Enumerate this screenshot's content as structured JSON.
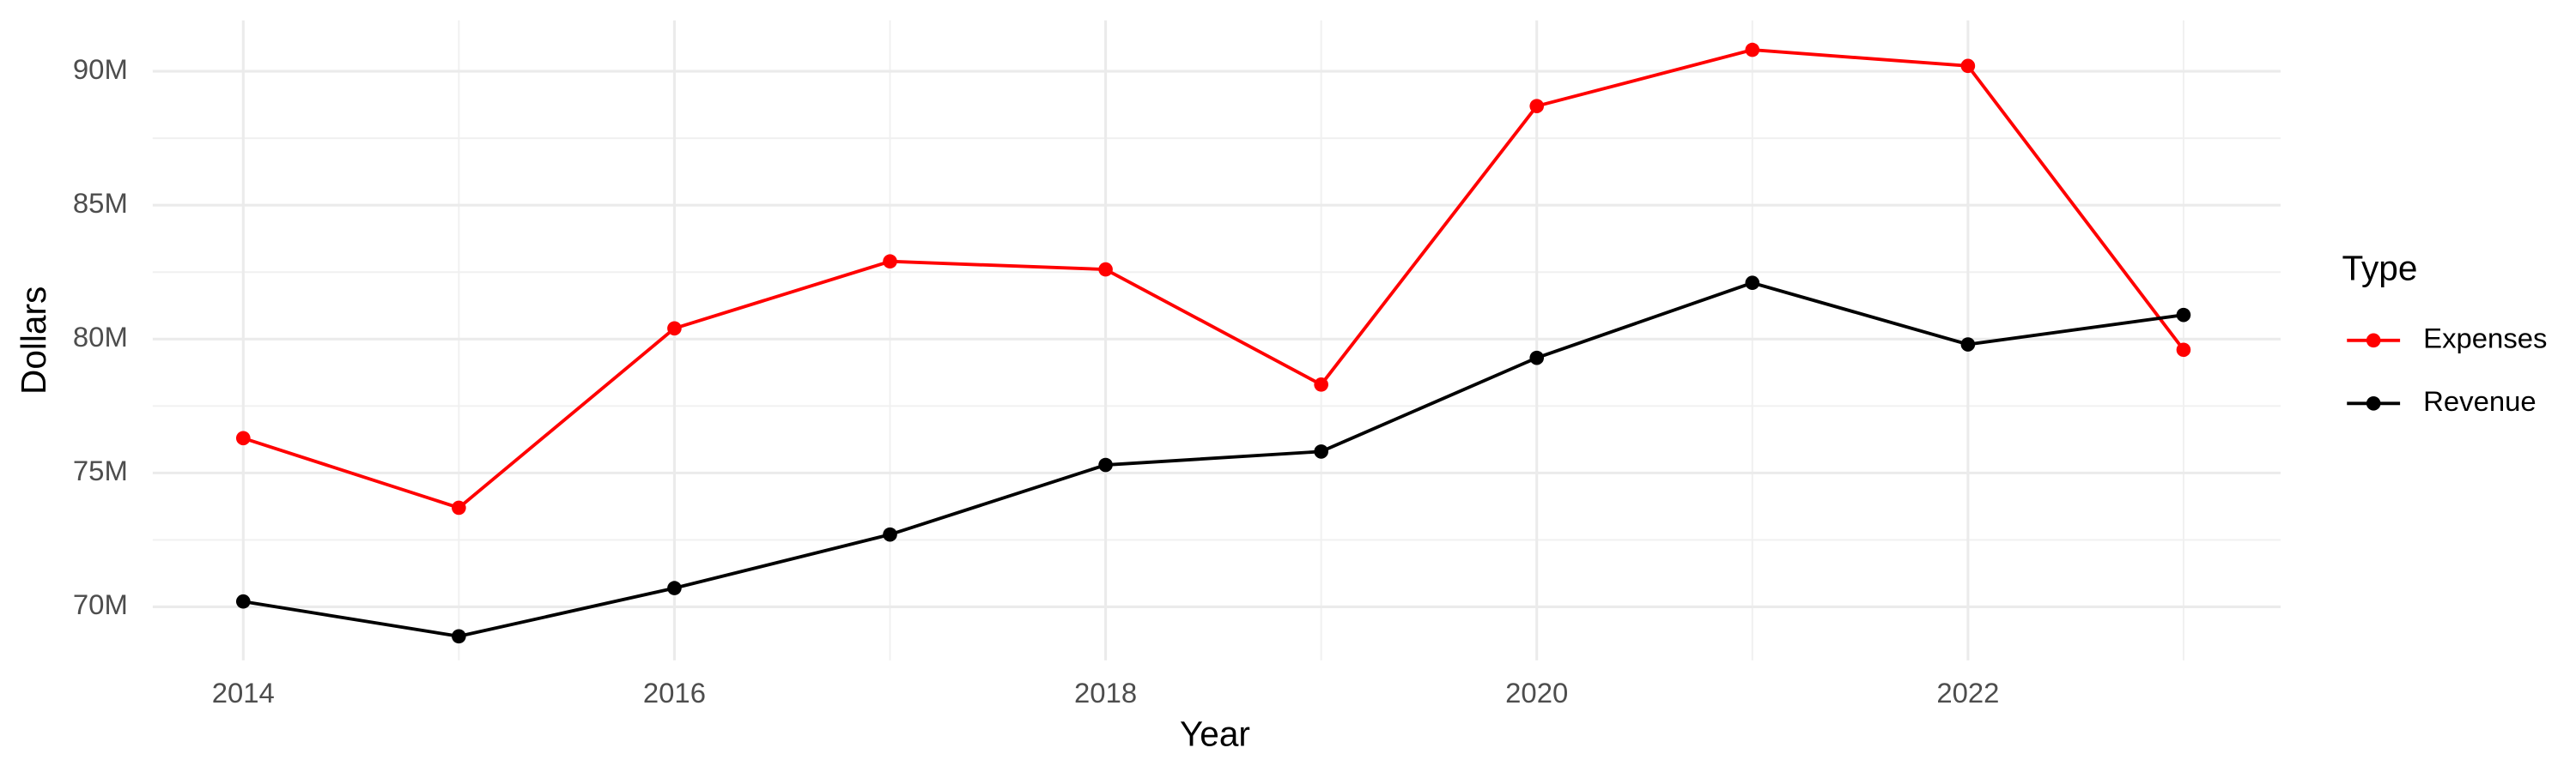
{
  "chart_data": {
    "type": "line",
    "x_label": "Year",
    "y_label": "Dollars",
    "legend_title": "Type",
    "legend_position": "right",
    "grid": true,
    "x": [
      2014,
      2015,
      2016,
      2017,
      2018,
      2019,
      2020,
      2021,
      2022,
      2023
    ],
    "series": [
      {
        "name": "Expenses",
        "color": "#ff0000",
        "values": [
          76300000,
          73700000,
          80400000,
          82900000,
          82600000,
          78300000,
          88700000,
          90800000,
          90200000,
          79600000
        ]
      },
      {
        "name": "Revenue",
        "color": "#000000",
        "values": [
          70200000,
          68900000,
          70700000,
          72700000,
          75300000,
          75800000,
          79300000,
          82100000,
          79800000,
          80900000
        ]
      }
    ],
    "xlim": [
      2013.58,
      2023.45
    ],
    "xticks": [
      2014,
      2016,
      2018,
      2020,
      2022
    ],
    "ylim": [
      68000000,
      91900000
    ],
    "yticks": [
      {
        "value": 70000000,
        "label": "70M"
      },
      {
        "value": 75000000,
        "label": "75M"
      },
      {
        "value": 80000000,
        "label": "80M"
      },
      {
        "value": 85000000,
        "label": "85M"
      },
      {
        "value": 90000000,
        "label": "90M"
      }
    ]
  }
}
